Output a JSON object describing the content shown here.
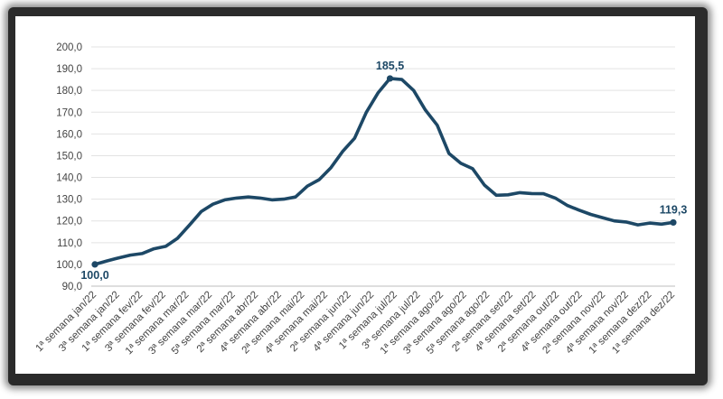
{
  "chart_data": {
    "type": "line",
    "title": "",
    "xlabel": "",
    "ylabel": "",
    "ylim": [
      90,
      200
    ],
    "yticks": [
      "90,0",
      "100,0",
      "110,0",
      "120,0",
      "130,0",
      "140,0",
      "150,0",
      "160,0",
      "170,0",
      "180,0",
      "190,0",
      "200,0"
    ],
    "grid": true,
    "color": "#1d4866",
    "x_tick_labels": [
      "1ª semana jan/22",
      "3ª semana jan/22",
      "1ª semana fev/22",
      "3ª semana fev/22",
      "1ª semana mar/22",
      "3ª semana mar/22",
      "5ª semana mar/22",
      "2ª semana abr/22",
      "4ª semana abr/22",
      "2ª semana mai/22",
      "4ª semana mai/22",
      "2ª semana jun/22",
      "4ª semana jun/22",
      "1ª semana jul/22",
      "3ª semana jul/22",
      "1ª semana ago/22",
      "3ª semana ago/22",
      "5ª semana ago/22",
      "2ª semana set/22",
      "4ª semana set/22",
      "2ª semana out/22",
      "4ª semana out/22",
      "2ª semana nov/22",
      "4ª semana nov/22",
      "1ª semana dez/22",
      "1ª semana dez/22"
    ],
    "values": [
      100.0,
      101.6,
      103.0,
      104.3,
      105.0,
      107.2,
      108.3,
      112.0,
      118.0,
      124.3,
      127.7,
      129.7,
      130.5,
      131.0,
      130.5,
      129.7,
      130.0,
      131.0,
      136.0,
      139.0,
      144.5,
      152.0,
      158.0,
      170.0,
      179.0,
      185.5,
      185.0,
      180.0,
      171.0,
      164.0,
      151.0,
      146.5,
      144.0,
      136.5,
      131.8,
      132.0,
      133.0,
      132.6,
      132.5,
      130.5,
      127.2,
      125.0,
      123.0,
      121.5,
      120.0,
      119.5,
      118.2,
      119.0,
      118.5,
      119.3
    ],
    "data_labels": [
      {
        "index": 0,
        "text": "100,0"
      },
      {
        "index": 25,
        "text": "185,5"
      },
      {
        "index": 49,
        "text": "119,3"
      }
    ]
  }
}
